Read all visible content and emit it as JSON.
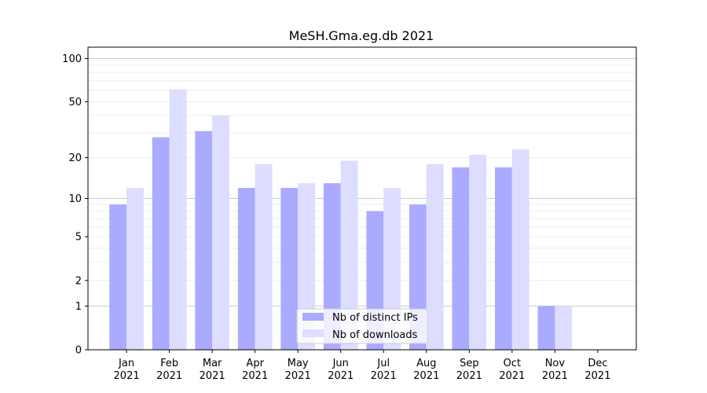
{
  "chart_data": {
    "type": "bar",
    "title": "MeSH.Gma.eg.db 2021",
    "xlabel": "",
    "ylabel": "",
    "y_scale": "log(1+y)",
    "ylim": [
      0,
      120
    ],
    "y_ticks": [
      0,
      1,
      2,
      5,
      10,
      20,
      50,
      100
    ],
    "categories": [
      "Jan\n2021",
      "Feb\n2021",
      "Mar\n2021",
      "Apr\n2021",
      "May\n2021",
      "Jun\n2021",
      "Jul\n2021",
      "Aug\n2021",
      "Sep\n2021",
      "Oct\n2021",
      "Nov\n2021",
      "Dec\n2021"
    ],
    "series": [
      {
        "name": "Nb of distinct IPs",
        "color": "#aaaaff",
        "values": [
          9,
          28,
          31,
          12,
          12,
          13,
          8,
          9,
          17,
          17,
          1,
          0
        ]
      },
      {
        "name": "Nb of downloads",
        "color": "#ddddff",
        "values": [
          12,
          61,
          40,
          18,
          13,
          19,
          12,
          18,
          21,
          23,
          1,
          0
        ]
      }
    ],
    "grid": true,
    "legend_position": "bottom-center"
  }
}
